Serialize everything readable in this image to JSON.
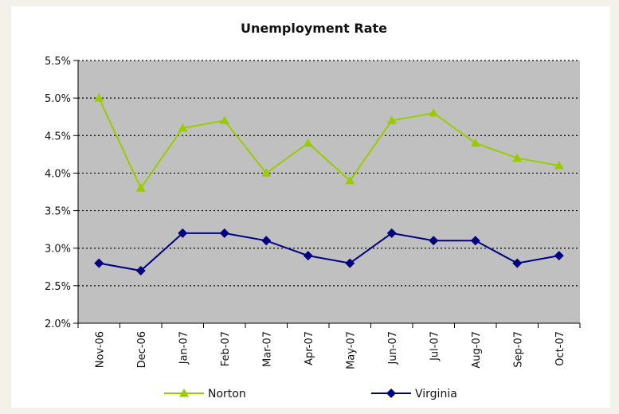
{
  "chart_data": {
    "type": "line",
    "title": "Unemployment Rate",
    "xlabel": "",
    "ylabel": "",
    "categories": [
      "Nov-06",
      "Dec-06",
      "Jan-07",
      "Feb-07",
      "Mar-07",
      "Apr-07",
      "May-07",
      "Jun-07",
      "Jul-07",
      "Aug-07",
      "Sep-07",
      "Oct-07"
    ],
    "y_ticks": [
      "2.0%",
      "2.5%",
      "3.0%",
      "3.5%",
      "4.0%",
      "4.5%",
      "5.0%",
      "5.5%"
    ],
    "ylim": [
      2.0,
      5.5
    ],
    "y_step": 0.5,
    "grid": "horizontal dotted",
    "legend_position": "bottom",
    "plot_background": "#c0c0c0",
    "series": [
      {
        "name": "Norton",
        "color": "#99cc00",
        "marker": "triangle",
        "values": [
          5.0,
          3.8,
          4.6,
          4.7,
          4.0,
          4.4,
          3.9,
          4.7,
          4.8,
          4.4,
          4.2,
          4.1
        ]
      },
      {
        "name": "Virginia",
        "color": "#000080",
        "marker": "diamond",
        "values": [
          2.8,
          2.7,
          3.2,
          3.2,
          3.1,
          2.9,
          2.8,
          3.2,
          3.1,
          3.1,
          2.8,
          2.9
        ]
      }
    ]
  }
}
